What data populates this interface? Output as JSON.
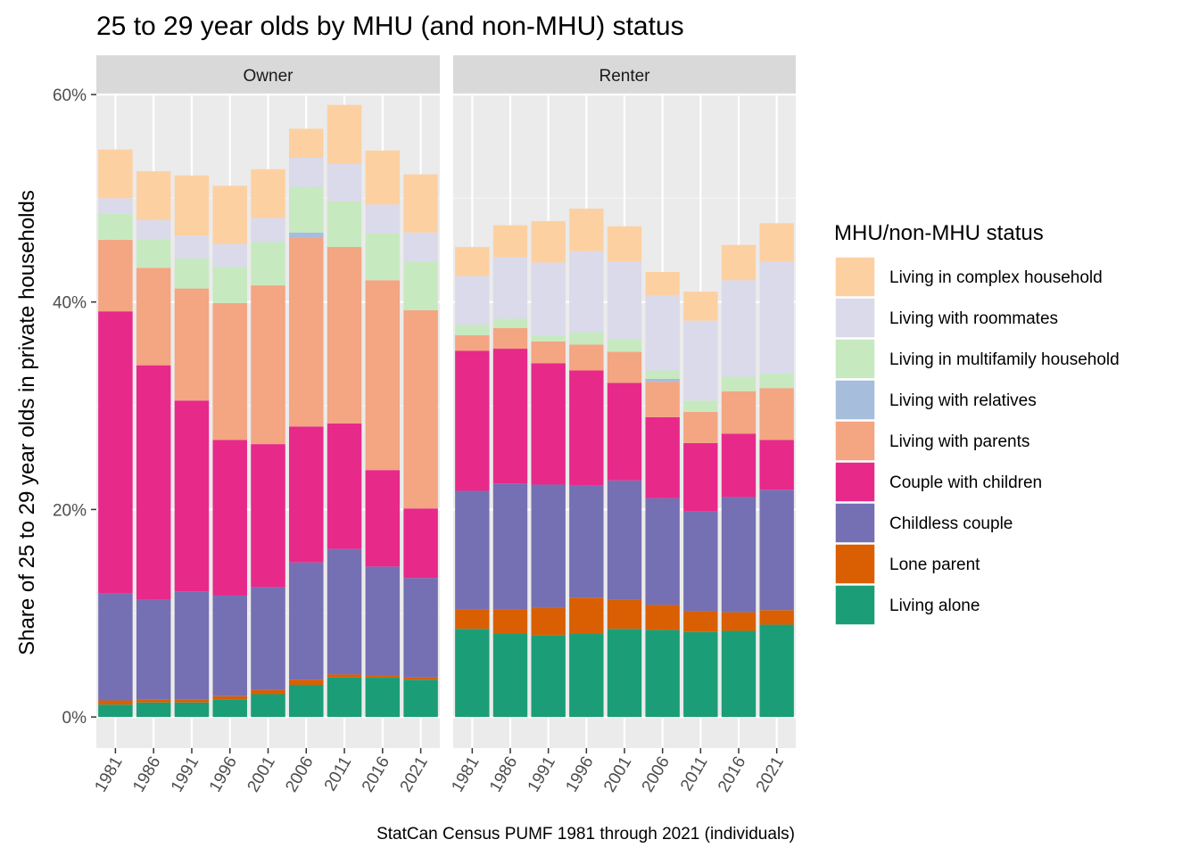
{
  "chart_data": {
    "type": "bar",
    "stacked": true,
    "title": "25 to 29 year olds by MHU (and non-MHU) status",
    "ylabel": "Share of 25 to 29 year olds in private households",
    "xlabel": "",
    "caption": "StatCan Census PUMF 1981 through 2021 (individuals)",
    "ylim": [
      -0.03,
      0.6
    ],
    "yticks": [
      0,
      0.2,
      0.4,
      0.6
    ],
    "ytick_labels": [
      "0%",
      "20%",
      "40%",
      "60%"
    ],
    "categories": [
      "1981",
      "1986",
      "1991",
      "1996",
      "2001",
      "2006",
      "2011",
      "2016",
      "2021"
    ],
    "legend": {
      "title": "MHU/non-MHU status",
      "position": "right"
    },
    "grid": true,
    "panels": [
      {
        "name": "Owner",
        "series": [
          {
            "name": "Living alone",
            "color": "#1B9E77",
            "values": [
              0.012,
              0.014,
              0.014,
              0.017,
              0.022,
              0.031,
              0.038,
              0.038,
              0.036
            ]
          },
          {
            "name": "Lone parent",
            "color": "#D95F02",
            "values": [
              0.004,
              0.003,
              0.003,
              0.003,
              0.004,
              0.005,
              0.003,
              0.002,
              0.002
            ]
          },
          {
            "name": "Childless couple",
            "color": "#7570B3",
            "values": [
              0.103,
              0.096,
              0.104,
              0.097,
              0.099,
              0.113,
              0.121,
              0.105,
              0.096
            ]
          },
          {
            "name": "Couple with children",
            "color": "#E7298A",
            "values": [
              0.272,
              0.226,
              0.184,
              0.15,
              0.138,
              0.131,
              0.121,
              0.093,
              0.067
            ]
          },
          {
            "name": "Living with parents",
            "color": "#F4A582",
            "values": [
              0.069,
              0.094,
              0.108,
              0.132,
              0.153,
              0.182,
              0.17,
              0.183,
              0.191
            ]
          },
          {
            "name": "Living with relatives",
            "color": "#A6BDDB",
            "values": [
              0.0,
              0.0,
              0.0,
              0.0,
              0.0,
              0.005,
              0.0,
              0.0,
              0.0
            ]
          },
          {
            "name": "Living in multifamily household",
            "color": "#C7E9C0",
            "values": [
              0.025,
              0.028,
              0.029,
              0.035,
              0.042,
              0.044,
              0.044,
              0.045,
              0.047
            ]
          },
          {
            "name": "Living with roommates",
            "color": "#DADAEB",
            "values": [
              0.015,
              0.018,
              0.022,
              0.022,
              0.023,
              0.028,
              0.036,
              0.028,
              0.028
            ]
          },
          {
            "name": "Living in complex household",
            "color": "#FDD0A2",
            "values": [
              0.047,
              0.047,
              0.058,
              0.056,
              0.047,
              0.028,
              0.057,
              0.052,
              0.056
            ]
          }
        ]
      },
      {
        "name": "Renter",
        "series": [
          {
            "name": "Living alone",
            "color": "#1B9E77",
            "values": [
              0.085,
              0.08,
              0.079,
              0.08,
              0.085,
              0.084,
              0.082,
              0.083,
              0.089
            ]
          },
          {
            "name": "Lone parent",
            "color": "#D95F02",
            "values": [
              0.019,
              0.024,
              0.026,
              0.035,
              0.028,
              0.024,
              0.02,
              0.018,
              0.014
            ]
          },
          {
            "name": "Childless couple",
            "color": "#7570B3",
            "values": [
              0.114,
              0.121,
              0.119,
              0.108,
              0.115,
              0.103,
              0.096,
              0.111,
              0.116
            ]
          },
          {
            "name": "Couple with children",
            "color": "#E7298A",
            "values": [
              0.135,
              0.13,
              0.117,
              0.111,
              0.094,
              0.078,
              0.066,
              0.061,
              0.048
            ]
          },
          {
            "name": "Living with parents",
            "color": "#F4A582",
            "values": [
              0.015,
              0.02,
              0.021,
              0.025,
              0.03,
              0.034,
              0.03,
              0.041,
              0.05
            ]
          },
          {
            "name": "Living with relatives",
            "color": "#A6BDDB",
            "values": [
              0.0,
              0.0,
              0.0,
              0.0,
              0.0,
              0.003,
              0.0,
              0.0,
              0.0
            ]
          },
          {
            "name": "Living in multifamily household",
            "color": "#C7E9C0",
            "values": [
              0.01,
              0.009,
              0.006,
              0.012,
              0.012,
              0.008,
              0.011,
              0.014,
              0.014
            ]
          },
          {
            "name": "Living with roommates",
            "color": "#DADAEB",
            "values": [
              0.047,
              0.059,
              0.07,
              0.078,
              0.075,
              0.072,
              0.077,
              0.093,
              0.108
            ]
          },
          {
            "name": "Living in complex household",
            "color": "#FDD0A2",
            "values": [
              0.028,
              0.031,
              0.04,
              0.041,
              0.034,
              0.023,
              0.028,
              0.034,
              0.037
            ]
          }
        ]
      }
    ]
  }
}
